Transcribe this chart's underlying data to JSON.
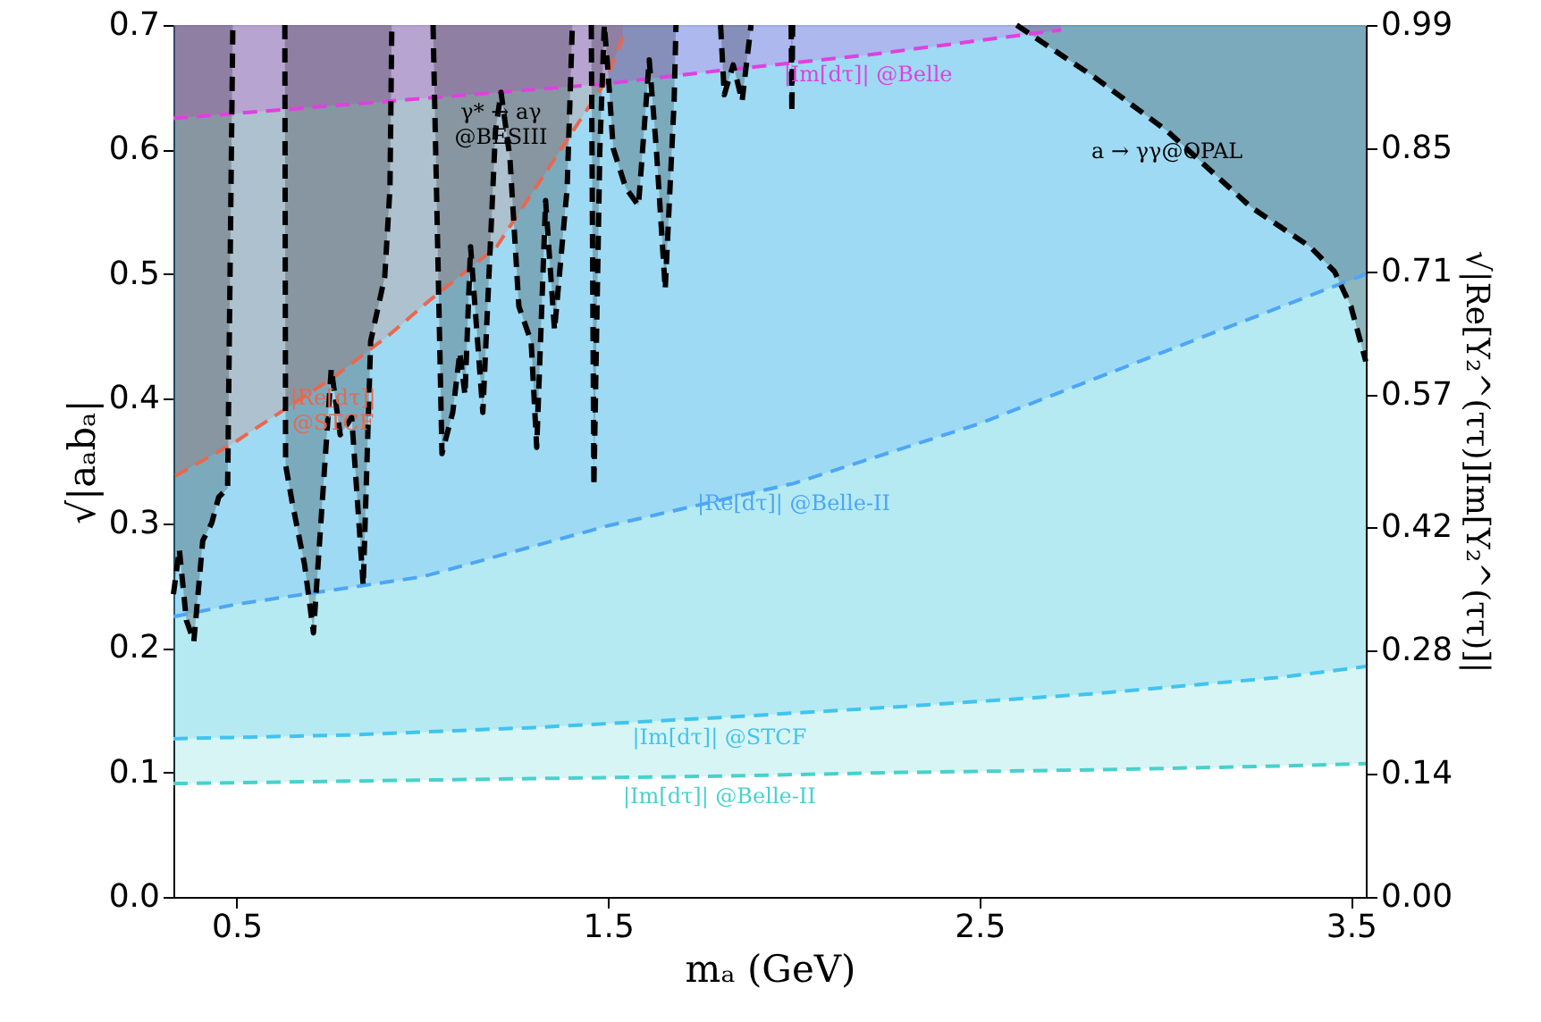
{
  "chart_data": {
    "type": "line",
    "xlabel": "mₐ (GeV)",
    "ylabel": "√|aₐbₐ|",
    "y2label": "√|Re[Y₂^(ττ)]Im[Y₂^(ττ)]|",
    "xlim": [
      0.33,
      3.54
    ],
    "xticks": [
      0.5,
      1.5,
      2.5,
      3.5
    ],
    "ylim": [
      0,
      0.7
    ],
    "yticks": [
      {
        "value": 0,
        "label": "0.0"
      },
      0.1,
      0.2,
      0.3,
      0.4,
      0.5,
      0.6,
      0.7
    ],
    "y2lim": [
      0,
      0.99
    ],
    "y2ticks": [
      {
        "value": 0,
        "label": "0.00"
      },
      0.14,
      0.28,
      0.42,
      0.57,
      0.71,
      0.85,
      0.99
    ],
    "line_style": "dashed",
    "grid": false,
    "series": [
      {
        "color": "#48d1cc",
        "x": [
          0.33,
          0.8,
          1.3,
          1.8,
          2.3,
          2.8,
          3.3,
          3.54
        ],
        "values": [
          0.091,
          0.093,
          0.095,
          0.097,
          0.1,
          0.102,
          0.105,
          0.107
        ],
        "lower": [
          0.091,
          0.093,
          0.095,
          0.097,
          0.1,
          0.102,
          0.105,
          0.107
        ],
        "upper": [
          0.7,
          0.7,
          0.7,
          0.7,
          0.7,
          0.7,
          0.7,
          0.7
        ]
      },
      {
        "color": "#40c4f0",
        "x": [
          0.33,
          0.8,
          1.3,
          1.8,
          2.3,
          2.8,
          3.3,
          3.54
        ],
        "values": [
          0.127,
          0.13,
          0.136,
          0.144,
          0.153,
          0.163,
          0.176,
          0.185
        ],
        "lower": [
          0.127,
          0.13,
          0.136,
          0.144,
          0.153,
          0.163,
          0.176,
          0.185
        ],
        "upper": [
          0.7,
          0.7,
          0.7,
          0.7,
          0.7,
          0.7,
          0.7,
          0.7
        ]
      },
      {
        "color": "#4da6f5",
        "x": [
          0.33,
          0.5,
          1.0,
          1.5,
          2.0,
          2.5,
          3.0,
          3.54
        ],
        "values": [
          0.225,
          0.235,
          0.257,
          0.298,
          0.332,
          0.38,
          0.438,
          0.5
        ],
        "lower": [
          0.225,
          0.235,
          0.257,
          0.298,
          0.332,
          0.38,
          0.438,
          0.5
        ],
        "upper": [
          0.7,
          0.7,
          0.7,
          0.7,
          0.7,
          0.7,
          0.7,
          0.7
        ]
      },
      {
        "color": "#e8684f",
        "x": [
          0.335,
          0.49,
          0.76,
          0.91,
          1.02,
          1.2,
          1.49,
          1.54
        ],
        "values": [
          0.338,
          0.364,
          0.417,
          0.451,
          0.479,
          0.522,
          0.653,
          0.69
        ],
        "lower": [
          0.338,
          0.364,
          0.417,
          0.451,
          0.479,
          0.522,
          0.653,
          0.69
        ],
        "upper": [
          0.7,
          0.7,
          0.7,
          0.7,
          0.7,
          0.7,
          0.7,
          0.7
        ]
      },
      {
        "color": "#e040e0",
        "x": [
          0.33,
          1.0,
          1.5,
          1.79,
          2.2,
          2.64,
          2.72
        ],
        "values": [
          0.625,
          0.641,
          0.653,
          0.663,
          0.676,
          0.693,
          0.696
        ],
        "lower": [
          0.625,
          0.641,
          0.653,
          0.663,
          0.676,
          0.693,
          0.696
        ],
        "upper": [
          0.7,
          0.7,
          0.7,
          0.7,
          0.7,
          0.7,
          0.7
        ]
      },
      {
        "color": "#000000",
        "x": [
          0.33,
          0.346,
          0.365,
          0.385,
          0.409,
          0.433,
          0.452,
          0.476,
          0.49,
          0.56,
          0.63,
          0.632,
          0.649,
          0.683,
          0.707,
          0.755,
          0.779,
          0.81,
          0.841,
          0.861,
          0.899,
          0.913,
          0.918,
          0.97,
          1.029,
          1.053,
          1.082,
          1.101,
          1.115,
          1.13,
          1.163,
          1.197,
          1.212,
          1.236,
          1.26,
          1.293,
          1.308,
          1.332,
          1.356,
          1.39,
          1.404,
          1.43,
          1.455,
          1.462,
          1.478,
          1.49,
          1.5,
          1.514,
          1.548,
          1.582,
          1.611,
          1.63,
          1.654,
          1.678,
          1.683,
          1.74,
          1.803,
          1.813,
          1.837,
          1.861,
          1.885,
          1.94,
          1.993,
          1.995,
          1.997
        ],
        "values": [
          0.243,
          0.279,
          0.222,
          0.205,
          0.286,
          0.3,
          0.321,
          0.328,
          0.7,
          null,
          0.7,
          0.347,
          0.318,
          0.267,
          0.212,
          0.424,
          0.371,
          0.385,
          0.25,
          0.446,
          0.498,
          0.569,
          0.7,
          null,
          0.7,
          0.356,
          0.389,
          0.437,
          0.403,
          0.522,
          0.389,
          0.615,
          0.646,
          0.593,
          0.474,
          0.446,
          0.361,
          0.559,
          0.455,
          0.569,
          0.7,
          null,
          0.7,
          0.33,
          0.6,
          0.7,
          0.663,
          0.601,
          0.569,
          0.555,
          0.672,
          0.601,
          0.488,
          0.639,
          0.7,
          null,
          0.7,
          0.644,
          0.668,
          0.639,
          0.7,
          null,
          0.7,
          0.63,
          0.7
        ],
        "lower": [
          0.243,
          0.279,
          0.222,
          0.205,
          0.286,
          0.3,
          0.321,
          0.328,
          0.7,
          null,
          0.7,
          0.347,
          0.318,
          0.267,
          0.212,
          0.424,
          0.371,
          0.385,
          0.25,
          0.446,
          0.498,
          0.569,
          0.7,
          null,
          0.7,
          0.356,
          0.389,
          0.437,
          0.403,
          0.522,
          0.389,
          0.615,
          0.646,
          0.593,
          0.474,
          0.446,
          0.361,
          0.559,
          0.455,
          0.569,
          0.7,
          null,
          0.7,
          0.33,
          0.6,
          0.7,
          0.663,
          0.601,
          0.569,
          0.555,
          0.672,
          0.601,
          0.488,
          0.639,
          0.7,
          null,
          0.7,
          0.644,
          0.668,
          0.639,
          0.7,
          null,
          0.7,
          0.63,
          0.7
        ],
        "upper": [
          0.7,
          0.7,
          0.7,
          0.7,
          0.7,
          0.7,
          0.7,
          0.7,
          0.7,
          null,
          0.7,
          0.7,
          0.7,
          0.7,
          0.7,
          0.7,
          0.7,
          0.7,
          0.7,
          0.7,
          0.7,
          0.7,
          0.7,
          null,
          0.7,
          0.7,
          0.7,
          0.7,
          0.7,
          0.7,
          0.7,
          0.7,
          0.7,
          0.7,
          0.7,
          0.7,
          0.7,
          0.7,
          0.7,
          0.7,
          0.7,
          null,
          0.7,
          0.7,
          0.7,
          0.7,
          0.7,
          0.7,
          0.7,
          0.7,
          0.7,
          0.7,
          0.7,
          0.7,
          0.7,
          null,
          0.7,
          0.7,
          0.7,
          0.7,
          0.7,
          null,
          0.7,
          0.7,
          0.7
        ]
      },
      {
        "color": "#000000",
        "x": [
          2.6,
          2.81,
          3.005,
          3.23,
          3.39,
          3.456,
          3.5,
          3.53,
          3.54
        ],
        "values": [
          0.7,
          0.658,
          0.615,
          0.554,
          0.522,
          0.502,
          0.474,
          0.441,
          0.43
        ],
        "lower": [
          0.7,
          0.658,
          0.615,
          0.554,
          0.522,
          0.502,
          0.474,
          0.441,
          0.43
        ],
        "upper": [
          0.7,
          0.7,
          0.7,
          0.7,
          0.7,
          0.7,
          0.7,
          0.7,
          0.7
        ]
      }
    ],
    "annotations": [
      {
        "text": "|Im[dτ]| @Belle-II",
        "x": 1.8,
        "y": 0.097
      },
      {
        "text": "|Im[dτ]| @STCF",
        "x": 1.8,
        "y": 0.144
      },
      {
        "text": "|Re[dτ]| @Belle-II",
        "x": 2.0,
        "y": 0.332
      },
      {
        "text": "|Re[dτ]|\n@STCF",
        "x": 0.76,
        "y": 0.417
      },
      {
        "text": "|Im[dτ]| @Belle",
        "x": 2.2,
        "y": 0.676
      },
      {
        "text": "γ* → aγ\n@BESIII",
        "x": 1.212,
        "y": 0.646
      },
      {
        "text": "a → γγ@OPAL",
        "x": 3.005,
        "y": 0.615
      }
    ]
  }
}
